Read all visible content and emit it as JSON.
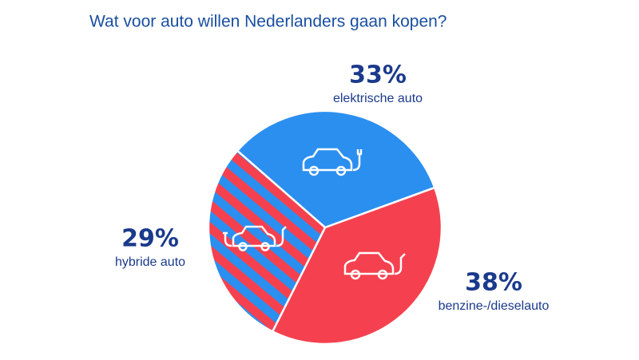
{
  "chart_data": {
    "type": "pie",
    "title": "Wat voor auto willen Nederlanders gaan kopen?",
    "categories": [
      "elektrische auto",
      "benzine-/dieselauto",
      "hybride auto"
    ],
    "values": [
      33,
      38,
      29
    ],
    "value_labels": [
      "33%",
      "38%",
      "29%"
    ],
    "colors": [
      "#2b8ff0",
      "#f5414f",
      [
        "#f5414f",
        "#2b8ff0"
      ]
    ]
  }
}
